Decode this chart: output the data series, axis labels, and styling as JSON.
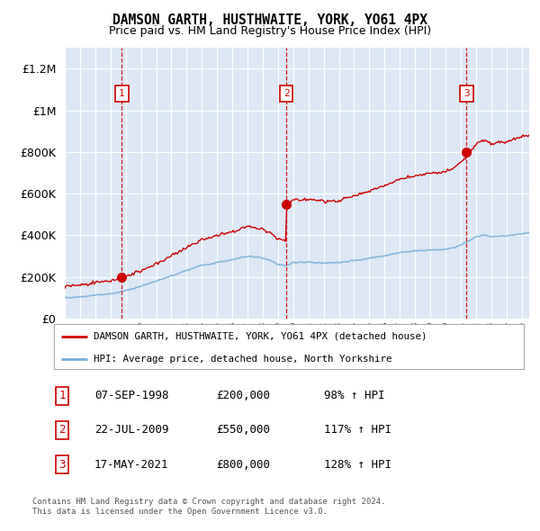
{
  "title": "DAMSON GARTH, HUSTHWAITE, YORK, YO61 4PX",
  "subtitle": "Price paid vs. HM Land Registry's House Price Index (HPI)",
  "legend_line1": "DAMSON GARTH, HUSTHWAITE, YORK, YO61 4PX (detached house)",
  "legend_line2": "HPI: Average price, detached house, North Yorkshire",
  "sale_events": [
    {
      "num": 1,
      "date": "07-SEP-1998",
      "price": 200000,
      "year": 1998.75,
      "hpi_pct": "98% ↑ HPI"
    },
    {
      "num": 2,
      "date": "22-JUL-2009",
      "price": 550000,
      "year": 2009.55,
      "hpi_pct": "117% ↑ HPI"
    },
    {
      "num": 3,
      "date": "17-MAY-2021",
      "price": 800000,
      "year": 2021.38,
      "hpi_pct": "128% ↑ HPI"
    }
  ],
  "footer1": "Contains HM Land Registry data © Crown copyright and database right 2024.",
  "footer2": "This data is licensed under the Open Government Licence v3.0.",
  "red_color": "#cc0000",
  "blue_color": "#7aaed6",
  "bg_color": "#dde8f4",
  "grid_color": "#ffffff",
  "vline_color": "#cc0000",
  "ylim": [
    0,
    1300000
  ],
  "xlim_start": 1995.0,
  "xlim_end": 2025.5
}
